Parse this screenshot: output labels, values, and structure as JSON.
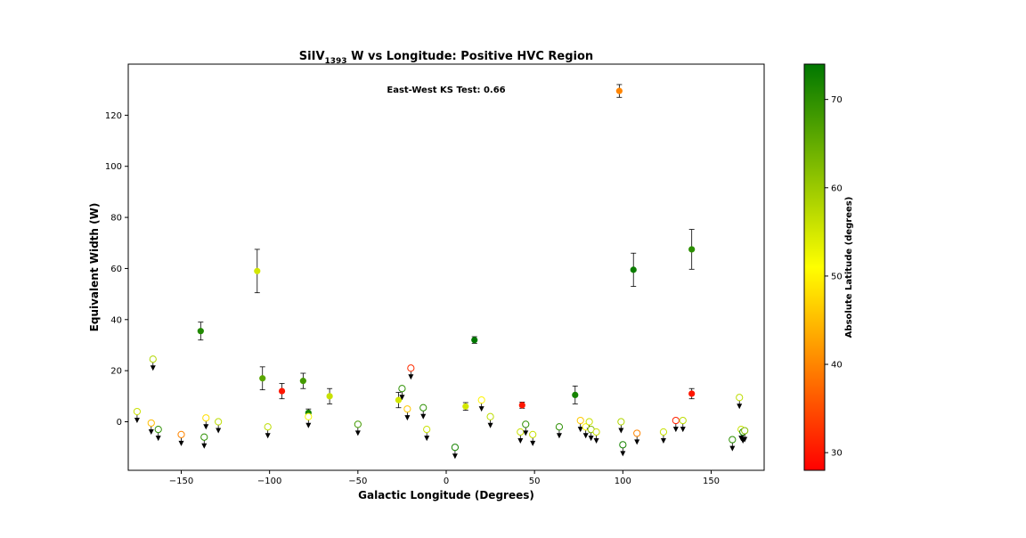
{
  "chart_data": {
    "type": "scatter",
    "title_main": "SiIV",
    "title_sub": "1393",
    "title_rest": " W vs Longitude: Positive HVC Region",
    "xlabel": "Galactic Longitude (Degrees)",
    "ylabel": "Equivalent Width (W)",
    "xlim": [
      -180,
      180
    ],
    "ylim": [
      -19,
      140
    ],
    "xticks": [
      -150,
      -100,
      -50,
      0,
      50,
      100,
      150
    ],
    "yticks": [
      0,
      20,
      40,
      60,
      80,
      100,
      120
    ],
    "annotation": "East-West KS Test: 0.66",
    "colorbar": {
      "label": "Absolute Latitude (degrees)",
      "range": [
        28,
        74
      ],
      "ticks": [
        30,
        40,
        50,
        60,
        70
      ],
      "colors": [
        "#ff0000",
        "#ffff00",
        "#007700"
      ]
    },
    "detections": [
      {
        "x": 98,
        "y": 129.5,
        "err": 2.5,
        "lat": 40
      },
      {
        "x": -107,
        "y": 59,
        "err": 8.5,
        "lat": 55
      },
      {
        "x": 106,
        "y": 59.5,
        "err": 6.5,
        "lat": 73
      },
      {
        "x": 139,
        "y": 67.5,
        "err": 7.8,
        "lat": 70
      },
      {
        "x": -139,
        "y": 35.5,
        "err": 3.5,
        "lat": 71
      },
      {
        "x": -104,
        "y": 17,
        "err": 4.5,
        "lat": 66
      },
      {
        "x": -93,
        "y": 12,
        "err": 3,
        "lat": 30
      },
      {
        "x": -81,
        "y": 16,
        "err": 3,
        "lat": 68
      },
      {
        "x": -78,
        "y": 3.5,
        "err": 1.5,
        "lat": 72
      },
      {
        "x": -66,
        "y": 10,
        "err": 3,
        "lat": 56
      },
      {
        "x": -27,
        "y": 8.5,
        "err": 3,
        "lat": 55
      },
      {
        "x": 11,
        "y": 6,
        "err": 1.5,
        "lat": 55
      },
      {
        "x": 16,
        "y": 32,
        "err": 1.3,
        "lat": 74
      },
      {
        "x": 43,
        "y": 6.5,
        "err": 1.2,
        "lat": 30
      },
      {
        "x": 73,
        "y": 10.5,
        "err": 3.5,
        "lat": 72
      },
      {
        "x": 139,
        "y": 11,
        "err": 2,
        "lat": 30
      }
    ],
    "upper_limits": [
      {
        "x": -175,
        "y": 4,
        "lat": 56
      },
      {
        "x": -166,
        "y": 24.5,
        "lat": 58
      },
      {
        "x": -167,
        "y": -0.5,
        "lat": 45
      },
      {
        "x": -163,
        "y": -3,
        "lat": 70
      },
      {
        "x": -150,
        "y": -5,
        "lat": 40
      },
      {
        "x": -137,
        "y": -6,
        "lat": 70
      },
      {
        "x": -136,
        "y": 1.5,
        "lat": 48
      },
      {
        "x": -129,
        "y": 0,
        "lat": 57
      },
      {
        "x": -101,
        "y": -2,
        "lat": 57
      },
      {
        "x": -78,
        "y": 2,
        "lat": 52
      },
      {
        "x": -50,
        "y": -1,
        "lat": 68
      },
      {
        "x": -25,
        "y": 13,
        "lat": 70
      },
      {
        "x": -22,
        "y": 5,
        "lat": 46
      },
      {
        "x": -20,
        "y": 21,
        "lat": 32
      },
      {
        "x": -13,
        "y": 5.5,
        "lat": 70
      },
      {
        "x": -11,
        "y": -3,
        "lat": 56
      },
      {
        "x": 5,
        "y": -10,
        "lat": 72
      },
      {
        "x": 20,
        "y": 8.5,
        "lat": 50
      },
      {
        "x": 25,
        "y": 2,
        "lat": 57
      },
      {
        "x": 42,
        "y": -4,
        "lat": 56
      },
      {
        "x": 45,
        "y": -1,
        "lat": 70
      },
      {
        "x": 49,
        "y": -5,
        "lat": 56
      },
      {
        "x": 64,
        "y": -2,
        "lat": 70
      },
      {
        "x": 76,
        "y": 0.5,
        "lat": 46
      },
      {
        "x": 79,
        "y": -2,
        "lat": 50
      },
      {
        "x": 81,
        "y": 0,
        "lat": 56
      },
      {
        "x": 82,
        "y": -3,
        "lat": 62
      },
      {
        "x": 85,
        "y": -4,
        "lat": 56
      },
      {
        "x": 99,
        "y": 0,
        "lat": 58
      },
      {
        "x": 100,
        "y": -9,
        "lat": 72
      },
      {
        "x": 108,
        "y": -4.5,
        "lat": 40
      },
      {
        "x": 123,
        "y": -4,
        "lat": 56
      },
      {
        "x": 130,
        "y": 0.5,
        "lat": 31
      },
      {
        "x": 134,
        "y": 0.5,
        "lat": 57
      },
      {
        "x": 162,
        "y": -7,
        "lat": 70
      },
      {
        "x": 166,
        "y": 9.5,
        "lat": 57
      },
      {
        "x": 167,
        "y": -3,
        "lat": 56
      },
      {
        "x": 168,
        "y": -4,
        "lat": 72
      },
      {
        "x": 169,
        "y": -3.5,
        "lat": 62
      }
    ]
  }
}
